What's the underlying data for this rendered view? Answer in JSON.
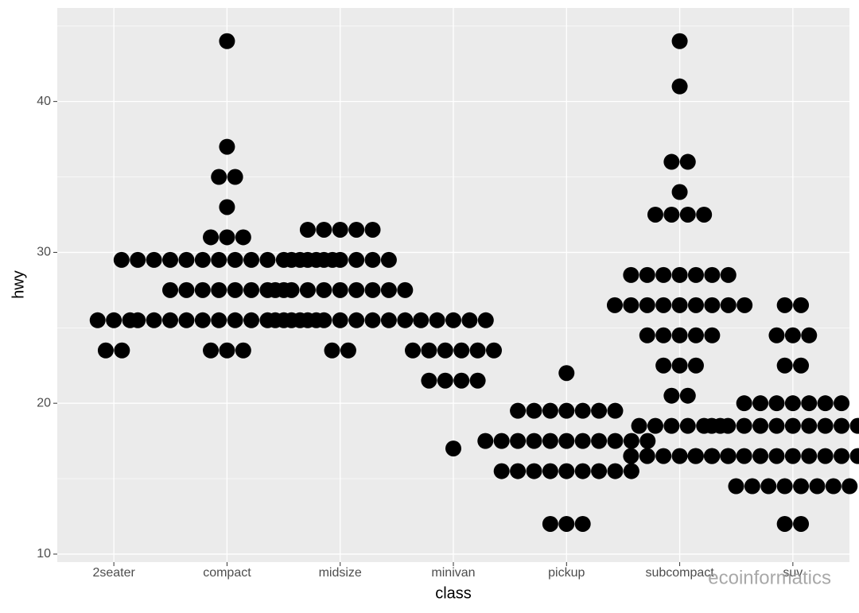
{
  "chart_data": {
    "type": "dotplot",
    "x_label": "class",
    "y_label": "hwy",
    "watermark": "ecoinformatics",
    "color": "#000000",
    "grid": true,
    "ylim": [
      9.47,
      46.2
    ],
    "yticks": [
      10,
      20,
      30,
      40
    ],
    "minor_yticks": [
      15,
      25,
      35,
      45
    ],
    "categories": [
      "2seater",
      "compact",
      "midsize",
      "minivan",
      "pickup",
      "subcompact",
      "suv"
    ],
    "stacks": [
      [
        {
          "y": 25.5,
          "count": 3
        },
        {
          "y": 23.5,
          "count": 2
        }
      ],
      [
        {
          "y": 44,
          "count": 1
        },
        {
          "y": 37,
          "count": 1
        },
        {
          "y": 35,
          "count": 2
        },
        {
          "y": 33,
          "count": 1
        },
        {
          "y": 31,
          "count": 3
        },
        {
          "y": 29.5,
          "count": 14
        },
        {
          "y": 27.5,
          "count": 8
        },
        {
          "y": 25.5,
          "count": 12
        },
        {
          "y": 23.5,
          "count": 3
        }
      ],
      [
        {
          "y": 31.5,
          "count": 5
        },
        {
          "y": 29.5,
          "count": 7
        },
        {
          "y": 27.5,
          "count": 9
        },
        {
          "y": 25.5,
          "count": 9
        },
        {
          "y": 23.5,
          "count": 2
        }
      ],
      [
        {
          "y": 25.5,
          "count": 5
        },
        {
          "y": 23.5,
          "count": 6
        },
        {
          "y": 21.5,
          "count": 4
        },
        {
          "y": 17,
          "count": 1
        }
      ],
      [
        {
          "y": 22,
          "count": 1
        },
        {
          "y": 19.5,
          "count": 7
        },
        {
          "y": 17.5,
          "count": 11
        },
        {
          "y": 15.5,
          "count": 9
        },
        {
          "y": 12,
          "count": 3
        }
      ],
      [
        {
          "y": 44,
          "count": 1
        },
        {
          "y": 41,
          "count": 1
        },
        {
          "y": 36,
          "count": 2
        },
        {
          "y": 34,
          "count": 1
        },
        {
          "y": 32.5,
          "count": 4
        },
        {
          "y": 28.5,
          "count": 7
        },
        {
          "y": 26.5,
          "count": 9
        },
        {
          "y": 24.5,
          "count": 5
        },
        {
          "y": 22.5,
          "count": 3
        },
        {
          "y": 20.5,
          "count": 2
        },
        {
          "y": 18.5,
          "count": 6
        },
        {
          "y": 16.5,
          "count": 7
        }
      ],
      [
        {
          "y": 26.5,
          "count": 2
        },
        {
          "y": 24.5,
          "count": 3
        },
        {
          "y": 22.5,
          "count": 2
        },
        {
          "y": 20,
          "count": 7
        },
        {
          "y": 18.5,
          "count": 11
        },
        {
          "y": 16.5,
          "count": 13
        },
        {
          "y": 14.5,
          "count": 8
        },
        {
          "y": 12,
          "count": 2
        }
      ]
    ]
  }
}
